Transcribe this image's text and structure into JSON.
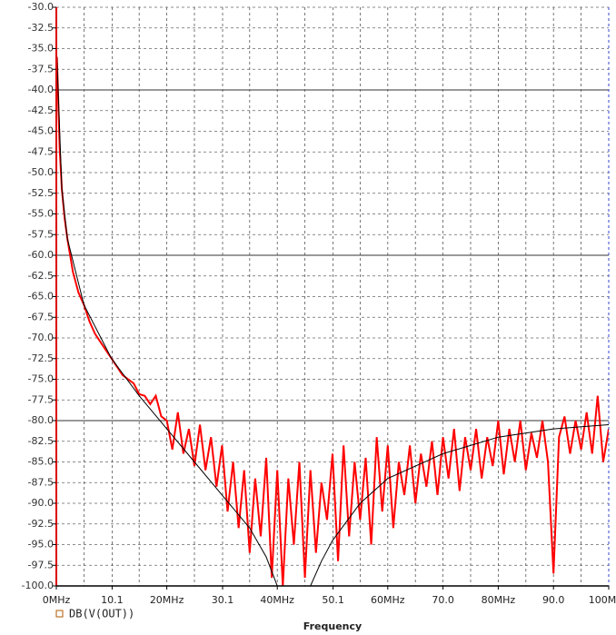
{
  "chart_data": {
    "type": "line",
    "xlabel": "Frequency",
    "xlim": [
      0,
      100
    ],
    "ylim": [
      -100,
      -30
    ],
    "xticks": [
      {
        "value": 0,
        "label": "0MHz"
      },
      10.1,
      {
        "value": 20,
        "label": "20MHz"
      },
      30.1,
      {
        "value": 40,
        "label": "40MHz"
      },
      50.1,
      {
        "value": 60,
        "label": "60MHz"
      },
      {
        "value": 70,
        "label": "70.0"
      },
      {
        "value": 80,
        "label": "80MHz"
      },
      {
        "value": 90,
        "label": "90.0"
      },
      {
        "value": 100,
        "label": "100MHz"
      }
    ],
    "yticks": [
      {
        "value": -30,
        "label": "-30.0"
      },
      -32.5,
      {
        "value": -35,
        "label": "-35.0"
      },
      -37.5,
      {
        "value": -40,
        "label": "-40.0"
      },
      -42.5,
      {
        "value": -45,
        "label": "-45.0"
      },
      -47.5,
      {
        "value": -50,
        "label": "-50.0"
      },
      -52.5,
      {
        "value": -55,
        "label": "-55.0"
      },
      -57.5,
      {
        "value": -60,
        "label": "-60.0"
      },
      -62.5,
      {
        "value": -65,
        "label": "-65.0"
      },
      -67.5,
      {
        "value": -70,
        "label": "-70.0"
      },
      -72.5,
      {
        "value": -75,
        "label": "-75.0"
      },
      -77.5,
      {
        "value": -80,
        "label": "-80.0"
      },
      -82.5,
      {
        "value": -85,
        "label": "-85.0"
      },
      -87.5,
      {
        "value": -90,
        "label": "-90.0"
      },
      -92.5,
      {
        "value": -95,
        "label": "-95.0"
      },
      -97.5,
      {
        "value": -100,
        "label": "-100.0"
      }
    ],
    "grid": true,
    "x_grid_step": 5,
    "series": [
      {
        "name": "DB(V(OUT))",
        "color": "#ff0000",
        "marker_color": "#b05a00",
        "x": [
          0.1,
          0.3,
          0.6,
          1,
          1.5,
          2,
          3,
          4,
          5,
          6,
          7,
          8,
          9,
          10,
          11,
          12,
          13,
          14,
          15,
          16,
          17,
          18,
          19,
          20,
          21,
          22,
          23,
          24,
          25,
          26,
          27,
          28,
          29,
          30,
          31,
          32,
          33,
          34,
          35,
          36,
          37,
          38,
          39,
          40,
          41,
          42,
          43,
          44,
          45,
          46,
          47,
          48,
          49,
          50,
          51,
          52,
          53,
          54,
          55,
          56,
          57,
          58,
          59,
          60,
          61,
          62,
          63,
          64,
          65,
          66,
          67,
          68,
          69,
          70,
          71,
          72,
          73,
          74,
          75,
          76,
          77,
          78,
          79,
          80,
          81,
          82,
          83,
          84,
          85,
          86,
          87,
          88,
          89,
          90,
          91,
          92,
          93,
          94,
          95,
          96,
          97,
          98,
          99,
          100
        ],
        "values": [
          -36,
          -40,
          -47,
          -52,
          -55.5,
          -58,
          -62,
          -64.5,
          -66,
          -68,
          -69.5,
          -70.5,
          -71.5,
          -72.5,
          -73.5,
          -74.5,
          -75,
          -75.5,
          -76.8,
          -77,
          -78,
          -77,
          -79.5,
          -80,
          -83.5,
          -79,
          -84,
          -81,
          -85.5,
          -80.5,
          -86,
          -82,
          -88,
          -83,
          -91,
          -85,
          -93,
          -86,
          -96,
          -87,
          -94,
          -84.5,
          -99,
          -86,
          -100,
          -87,
          -95,
          -85,
          -99,
          -86,
          -96,
          -87.5,
          -92,
          -84,
          -97,
          -83,
          -94,
          -85,
          -92,
          -84.5,
          -95,
          -82,
          -91,
          -83,
          -93,
          -85,
          -89,
          -83,
          -90,
          -84,
          -88,
          -82.5,
          -89,
          -82,
          -87,
          -81,
          -88.5,
          -82,
          -86,
          -81,
          -87,
          -82,
          -85.5,
          -80,
          -86.5,
          -81,
          -85,
          -80,
          -86,
          -81.5,
          -84.5,
          -80,
          -85,
          -98.5,
          -82,
          -79.5,
          -84,
          -80,
          -83.5,
          -79,
          -84,
          -77,
          -85,
          -81
        ]
      },
      {
        "color": "#000000",
        "x": [
          0.1,
          1,
          2,
          5,
          10,
          15,
          20,
          25,
          30,
          35,
          38,
          40,
          43,
          46,
          48,
          50,
          55,
          60,
          70,
          80,
          90,
          100
        ],
        "values": [
          -36,
          -52,
          -58,
          -66,
          -72.5,
          -77,
          -81,
          -85,
          -89,
          -93,
          -96.5,
          -100,
          null,
          -100,
          -97,
          -94.5,
          -90,
          -87,
          -84,
          -82,
          -81,
          -80.5
        ]
      }
    ]
  }
}
